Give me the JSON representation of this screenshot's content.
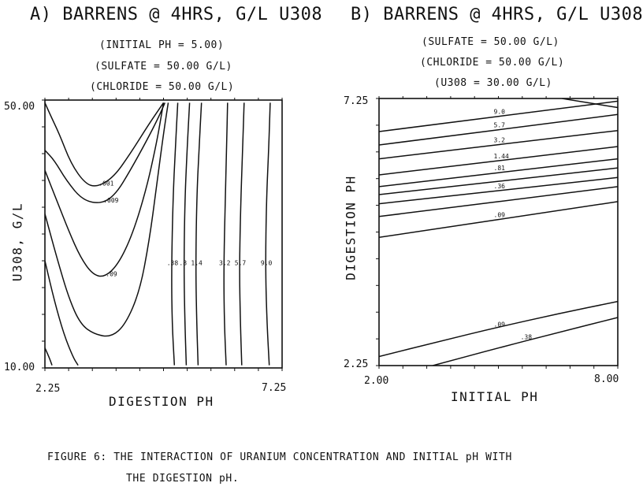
{
  "panels": [
    {
      "title": "A) BARRENS @ 4HRS, G/L U308",
      "subtitles": [
        "(INITIAL PH = 5.00)",
        "(SULFATE = 50.00 G/L)",
        "(CHLORIDE = 50.00 G/L)"
      ],
      "x_label": "DIGESTION PH",
      "y_label": "U308, G/L",
      "x_ticks": [
        "2.25",
        "7.25"
      ],
      "y_ticks": [
        "50.00",
        "10.00"
      ]
    },
    {
      "title": "B) BARRENS @ 4HRS, G/L U308",
      "subtitles": [
        "(SULFATE = 50.00 G/L)",
        "(CHLORIDE = 50.00 G/L)",
        "(U308 = 30.00 G/L)"
      ],
      "x_label": "INITIAL PH",
      "y_label": "DIGESTION PH",
      "x_ticks": [
        "2.00",
        "8.00"
      ],
      "y_ticks": [
        "7.25",
        "2.25"
      ]
    }
  ],
  "caption": {
    "line1": "FIGURE 6: THE INTERACTION OF URANIUM CONCENTRATION AND INITIAL pH WITH",
    "line2": "THE DIGESTION pH."
  },
  "chart_data": [
    {
      "type": "contour",
      "title": "A) BARRENS @ 4HRS, G/L U308",
      "xlabel": "DIGESTION PH",
      "ylabel": "U308, G/L",
      "xlim": [
        2.25,
        7.25
      ],
      "ylim": [
        10.0,
        50.0
      ],
      "contours": [
        {
          "label": ".001",
          "points": [
            [
              2.25,
              49.6
            ],
            [
              2.35,
              48
            ],
            [
              2.55,
              45
            ],
            [
              2.8,
              40.5
            ],
            [
              3.1,
              37.5
            ],
            [
              3.35,
              37
            ],
            [
              3.7,
              38.5
            ],
            [
              4.05,
              42
            ],
            [
              4.45,
              46.5
            ],
            [
              4.75,
              49.6
            ]
          ]
        },
        {
          "label": ".009",
          "points": [
            [
              2.25,
              42.5
            ],
            [
              2.45,
              41
            ],
            [
              2.7,
              38
            ],
            [
              3.05,
              35
            ],
            [
              3.45,
              34.5
            ],
            [
              3.75,
              36
            ],
            [
              4.05,
              39.5
            ],
            [
              4.4,
              44
            ],
            [
              4.65,
              47.5
            ],
            [
              4.78,
              49.6
            ]
          ]
        },
        {
          "label": ".09",
          "points": [
            [
              2.25,
              39.5
            ],
            [
              2.5,
              35
            ],
            [
              2.75,
              30.5
            ],
            [
              3.0,
              26.5
            ],
            [
              3.25,
              24
            ],
            [
              3.5,
              23.5
            ],
            [
              3.8,
              25.5
            ],
            [
              4.1,
              30
            ],
            [
              4.4,
              37
            ],
            [
              4.6,
              43.5
            ],
            [
              4.7,
              47.5
            ],
            [
              4.75,
              49.6
            ]
          ]
        },
        {
          "label": "",
          "points": [
            [
              2.25,
              33
            ],
            [
              2.5,
              26.5
            ],
            [
              2.75,
              20.5
            ],
            [
              3.0,
              16.5
            ],
            [
              3.3,
              15
            ],
            [
              3.65,
              14.6
            ],
            [
              3.95,
              16.5
            ],
            [
              4.25,
              21.5
            ],
            [
              4.45,
              29
            ],
            [
              4.6,
              37
            ],
            [
              4.75,
              45
            ],
            [
              4.85,
              49.6
            ]
          ]
        },
        {
          "label": "",
          "points": [
            [
              2.25,
              26
            ],
            [
              2.45,
              20
            ],
            [
              2.65,
              15
            ],
            [
              2.85,
              11.5
            ],
            [
              2.95,
              10.4
            ]
          ]
        },
        {
          "label": "",
          "points": [
            [
              2.25,
              13
            ],
            [
              2.35,
              11.4
            ],
            [
              2.4,
              10.4
            ]
          ]
        },
        {
          "label": ".38",
          "points": [
            [
              5.05,
              49.6
            ],
            [
              5.0,
              43
            ],
            [
              4.95,
              35
            ],
            [
              4.92,
              25
            ],
            [
              4.93,
              17
            ],
            [
              4.98,
              10.4
            ]
          ]
        },
        {
          "label": ".8",
          "points": [
            [
              5.3,
              49.6
            ],
            [
              5.25,
              43
            ],
            [
              5.2,
              35
            ],
            [
              5.18,
              25
            ],
            [
              5.2,
              17
            ],
            [
              5.23,
              10.4
            ]
          ]
        },
        {
          "label": "1.4",
          "points": [
            [
              5.55,
              49.6
            ],
            [
              5.5,
              43
            ],
            [
              5.45,
              35
            ],
            [
              5.43,
              25
            ],
            [
              5.45,
              17
            ],
            [
              5.48,
              10.4
            ]
          ]
        },
        {
          "label": "3.2",
          "points": [
            [
              6.1,
              49.6
            ],
            [
              6.08,
              43
            ],
            [
              6.05,
              35
            ],
            [
              6.02,
              25
            ],
            [
              6.03,
              17
            ],
            [
              6.07,
              10.4
            ]
          ]
        },
        {
          "label": "5.7",
          "points": [
            [
              6.45,
              49.6
            ],
            [
              6.42,
              43
            ],
            [
              6.38,
              35
            ],
            [
              6.35,
              25
            ],
            [
              6.37,
              17
            ],
            [
              6.4,
              10.4
            ]
          ]
        },
        {
          "label": "9.0",
          "points": [
            [
              7.0,
              49.6
            ],
            [
              6.97,
              43
            ],
            [
              6.92,
              35
            ],
            [
              6.9,
              25
            ],
            [
              6.93,
              17
            ],
            [
              6.98,
              10.4
            ]
          ]
        }
      ]
    },
    {
      "type": "contour",
      "title": "B) BARRENS @ 4HRS, G/L U308",
      "xlabel": "INITIAL PH",
      "ylabel": "DIGESTION PH",
      "xlim": [
        2.0,
        8.0
      ],
      "ylim": [
        2.25,
        7.25
      ],
      "contours": [
        {
          "label": "",
          "points": [
            [
              6.6,
              7.25
            ],
            [
              8.0,
              7.08
            ]
          ]
        },
        {
          "label": "9.0",
          "points": [
            [
              2.0,
              6.63
            ],
            [
              8.0,
              7.2
            ]
          ]
        },
        {
          "label": "5.7",
          "points": [
            [
              2.0,
              6.38
            ],
            [
              8.0,
              6.95
            ]
          ]
        },
        {
          "label": "3.2",
          "points": [
            [
              2.0,
              6.12
            ],
            [
              8.0,
              6.65
            ]
          ]
        },
        {
          "label": "1.44",
          "points": [
            [
              2.0,
              5.82
            ],
            [
              8.0,
              6.35
            ]
          ]
        },
        {
          "label": ".81",
          "points": [
            [
              2.0,
              5.6
            ],
            [
              8.0,
              6.12
            ]
          ]
        },
        {
          "label": "",
          "points": [
            [
              2.0,
              5.45
            ],
            [
              8.0,
              5.95
            ]
          ]
        },
        {
          "label": ".36",
          "points": [
            [
              2.0,
              5.28
            ],
            [
              8.0,
              5.77
            ]
          ]
        },
        {
          "label": "",
          "points": [
            [
              2.0,
              5.04
            ],
            [
              8.0,
              5.6
            ]
          ]
        },
        {
          "label": ".09",
          "points": [
            [
              2.0,
              4.65
            ],
            [
              8.0,
              5.32
            ]
          ]
        },
        {
          "label": ".09",
          "points": [
            [
              2.0,
              2.42
            ],
            [
              3.5,
              2.7
            ],
            [
              5.0,
              2.97
            ],
            [
              6.5,
              3.22
            ],
            [
              8.0,
              3.45
            ]
          ]
        },
        {
          "label": ".38",
          "points": [
            [
              3.35,
              2.25
            ],
            [
              5.0,
              2.58
            ],
            [
              6.5,
              2.87
            ],
            [
              8.0,
              3.15
            ]
          ]
        }
      ]
    }
  ]
}
